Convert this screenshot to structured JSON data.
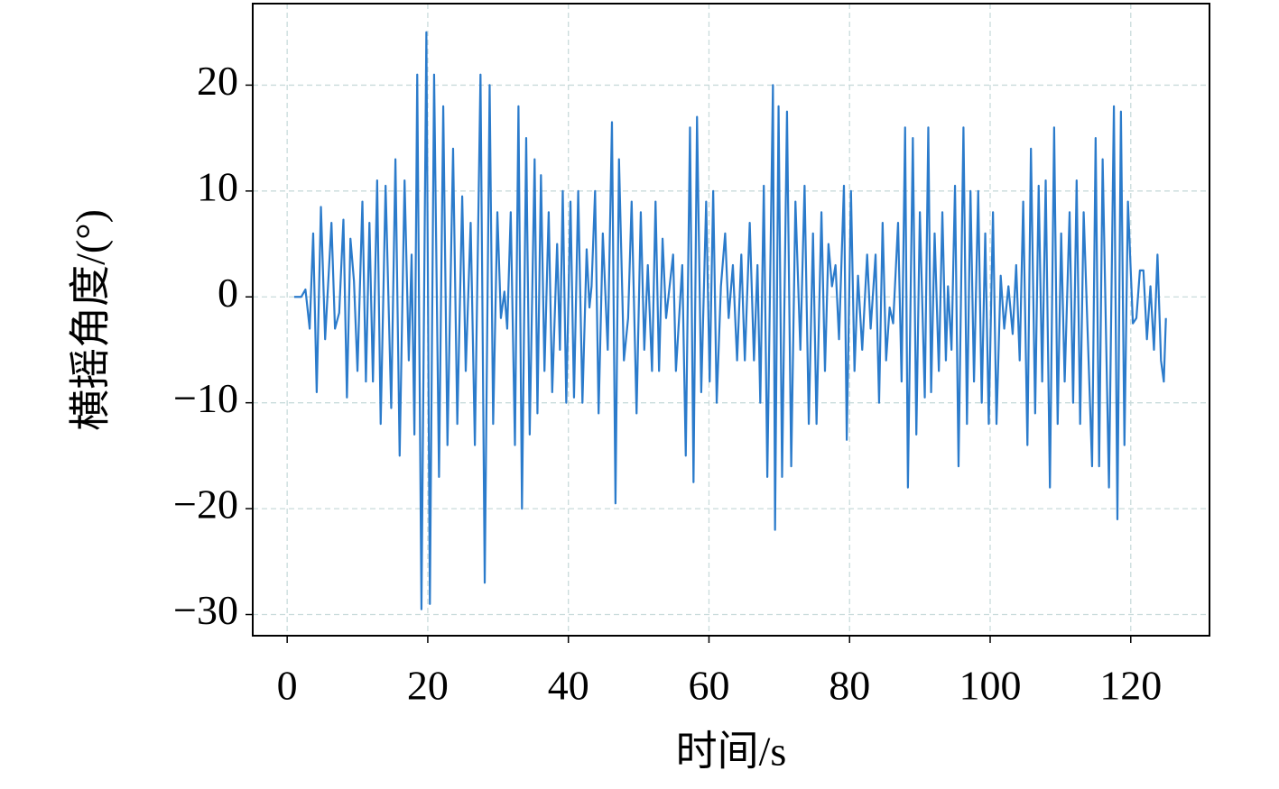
{
  "chart_data": {
    "type": "line",
    "xlabel": "时间/s",
    "ylabel": "横摇角度/(°)",
    "x": [
      1,
      2,
      2.6,
      3.2,
      3.7,
      4.2,
      4.8,
      5.4,
      6.3,
      6.8,
      7.4,
      8.0,
      8.5,
      9.0,
      9.5,
      10.0,
      10.7,
      11.2,
      11.7,
      12.2,
      12.8,
      13.3,
      14.0,
      14.8,
      15.4,
      16.0,
      16.7,
      17.3,
      17.7,
      18.1,
      18.5,
      19.1,
      19.8,
      20.3,
      20.9,
      21.6,
      22.2,
      22.8,
      23.6,
      24.2,
      24.9,
      25.4,
      26.1,
      26.7,
      27.5,
      28.1,
      28.8,
      29.3,
      29.9,
      30.4,
      30.9,
      31.3,
      31.8,
      32.4,
      32.9,
      33.4,
      34.0,
      34.5,
      35.2,
      35.6,
      36.1,
      36.6,
      37.2,
      37.7,
      38.4,
      38.8,
      39.2,
      39.7,
      40.3,
      40.8,
      41.4,
      42.0,
      42.6,
      43.0,
      43.3,
      43.8,
      44.3,
      44.9,
      45.6,
      46.2,
      46.7,
      47.2,
      47.9,
      48.5,
      49.0,
      49.7,
      50.3,
      50.8,
      51.3,
      51.9,
      52.4,
      52.9,
      53.4,
      53.9,
      54.4,
      54.9,
      55.3,
      56.2,
      56.7,
      57.3,
      57.8,
      58.3,
      58.9,
      59.6,
      60.1,
      60.6,
      61.1,
      61.7,
      62.3,
      62.8,
      63.4,
      64.0,
      64.6,
      65.1,
      65.8,
      66.4,
      66.9,
      67.3,
      67.8,
      68.3,
      69.1,
      69.4,
      69.9,
      70.4,
      71.1,
      71.7,
      72.3,
      73.0,
      73.6,
      74.2,
      74.8,
      75.3,
      76.0,
      76.5,
      77.0,
      77.5,
      78.0,
      78.5,
      79.2,
      79.6,
      80.2,
      80.7,
      81.2,
      81.8,
      82.5,
      83.0,
      83.7,
      84.2,
      84.7,
      85.2,
      85.7,
      86.2,
      86.9,
      87.4,
      87.9,
      88.3,
      89.0,
      89.5,
      90.0,
      90.7,
      91.2,
      91.6,
      92.1,
      92.7,
      93.2,
      93.7,
      94.0,
      94.5,
      95.0,
      95.5,
      96.2,
      96.7,
      97.2,
      97.7,
      98.3,
      98.8,
      99.3,
      99.8,
      100.4,
      100.9,
      101.5,
      102.0,
      102.6,
      103.2,
      103.7,
      104.2,
      104.7,
      105.3,
      105.8,
      106.4,
      106.9,
      107.4,
      107.9,
      108.5,
      109.1,
      109.6,
      110.1,
      110.6,
      111.3,
      111.8,
      112.3,
      112.8,
      113.3,
      114.5,
      115.0,
      115.5,
      116.0,
      116.9,
      117.6,
      118.1,
      118.6,
      119.1,
      119.6,
      120.3,
      120.8,
      121.3,
      121.8,
      122.3,
      122.8,
      123.3,
      123.8,
      124.3,
      124.7,
      125.0
    ],
    "series": [
      {
        "color": "#2b7bcb",
        "values": [
          0,
          0,
          0.7,
          -3,
          6,
          -9,
          8.5,
          -4,
          7,
          -3,
          -1.5,
          7.3,
          -9.5,
          5.5,
          1.5,
          -7,
          9,
          -8,
          7,
          -8,
          11,
          -12,
          10.5,
          -10.5,
          13,
          -15,
          11,
          -6,
          4,
          -13,
          21,
          -29.5,
          25,
          -29,
          21,
          -17,
          18,
          -14,
          14,
          -12,
          9.5,
          -7,
          7,
          -14,
          21,
          -27,
          20,
          -12,
          8,
          -2,
          0.5,
          -3,
          8,
          -14,
          18,
          -20,
          15,
          -13,
          13,
          -11,
          11.5,
          -7,
          8,
          -9,
          5,
          -5,
          10,
          -10,
          9,
          -9.5,
          10,
          -10,
          4.5,
          -1,
          1,
          10,
          -11,
          6,
          -5,
          16.5,
          -19.5,
          13,
          -6,
          -2,
          9,
          -11,
          8,
          -5,
          3,
          -7,
          9,
          -7,
          5.5,
          -2,
          1,
          4,
          -7,
          3,
          -15,
          16,
          -17.5,
          17,
          -9,
          9,
          -8,
          10,
          -10,
          1,
          6,
          -2,
          3,
          -6,
          4,
          -6,
          7,
          -6,
          3,
          -10,
          10.5,
          -17,
          20,
          -22,
          18,
          -17,
          17.5,
          -16,
          9,
          -5,
          10.5,
          -12,
          6,
          -12,
          8,
          -7,
          5,
          1,
          3,
          -4,
          10.5,
          -13.5,
          10,
          -7,
          2,
          -5,
          4,
          -3,
          4,
          -10,
          7,
          -6,
          -1,
          -2.5,
          7,
          -8,
          16,
          -18,
          15,
          -13,
          8,
          -9.5,
          16,
          -9,
          6,
          -7,
          8,
          -6,
          1,
          -5,
          10.5,
          -16,
          16,
          -12,
          10,
          -8,
          10,
          -10,
          6,
          -12,
          8,
          -12,
          2,
          -3,
          1,
          -3.5,
          3,
          -6,
          9,
          -14,
          14,
          -11,
          10.5,
          -8,
          11,
          -18,
          16,
          -12,
          6,
          -8,
          8,
          -10,
          11,
          -12,
          8,
          -16,
          15,
          -16,
          13,
          -18,
          18,
          -21,
          17.5,
          -14,
          9,
          -2.5,
          -2,
          2.5,
          2.5,
          -4,
          1,
          -5,
          4,
          -6,
          -8,
          -2
        ]
      }
    ],
    "xlim": [
      -4.9,
      131.2
    ],
    "ylim": [
      -32,
      27.7
    ],
    "xticks": [
      0,
      20,
      40,
      60,
      80,
      100,
      120
    ],
    "yticks": [
      {
        "value": -30,
        "label": "−30"
      },
      {
        "value": -20,
        "label": "−20"
      },
      {
        "value": -10,
        "label": "−10"
      },
      0,
      10,
      20
    ],
    "grid": true
  }
}
